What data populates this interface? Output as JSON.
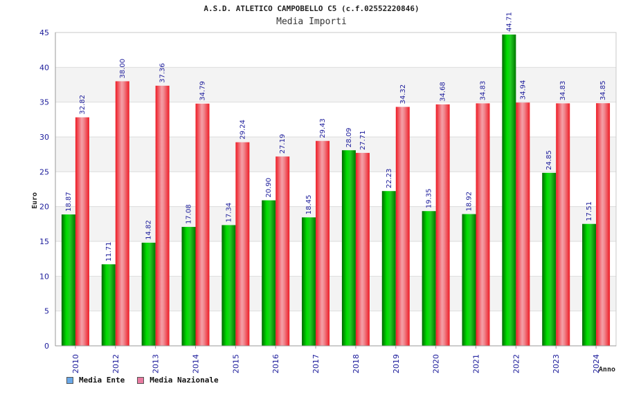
{
  "chart_data": {
    "type": "bar",
    "title": "A.S.D. ATLETICO CAMPOBELLO C5 (c.f.02552220846)",
    "subtitle": "Media Importi",
    "xlabel": "Anno",
    "ylabel": "Euro",
    "ylim": [
      0,
      45
    ],
    "yticks": [
      0,
      5,
      10,
      15,
      20,
      25,
      30,
      35,
      40,
      45
    ],
    "grid": true,
    "legend_position": "bottom-left",
    "categories": [
      "2010",
      "2012",
      "2013",
      "2014",
      "2015",
      "2016",
      "2017",
      "2018",
      "2019",
      "2020",
      "2021",
      "2022",
      "2023",
      "2024"
    ],
    "series": [
      {
        "name": "Media Ente",
        "color": "#00bb00",
        "legend_color": "#6aa8e8",
        "values": [
          18.87,
          11.71,
          14.82,
          17.08,
          17.34,
          20.9,
          18.45,
          28.09,
          22.23,
          19.35,
          18.92,
          44.71,
          24.85,
          17.51
        ],
        "labels": [
          "18.87",
          "11.71",
          "14.82",
          "17.08",
          "17.34",
          "20.90",
          "18.45",
          "28.09",
          "22.23",
          "19.35",
          "18.92",
          "44.71",
          "24.85",
          "17.51"
        ]
      },
      {
        "name": "Media Nazionale",
        "color": "#ee1c25",
        "legend_color": "#e87aa0",
        "values": [
          32.82,
          38.0,
          37.36,
          34.79,
          29.24,
          27.19,
          29.43,
          27.71,
          34.32,
          34.68,
          34.83,
          34.94,
          34.83,
          34.85
        ],
        "labels": [
          "32.82",
          "38.00",
          "37.36",
          "34.79",
          "29.24",
          "27.19",
          "29.43",
          "27.71",
          "34.32",
          "34.68",
          "34.83",
          "34.94",
          "34.83",
          "34.85"
        ]
      }
    ]
  }
}
